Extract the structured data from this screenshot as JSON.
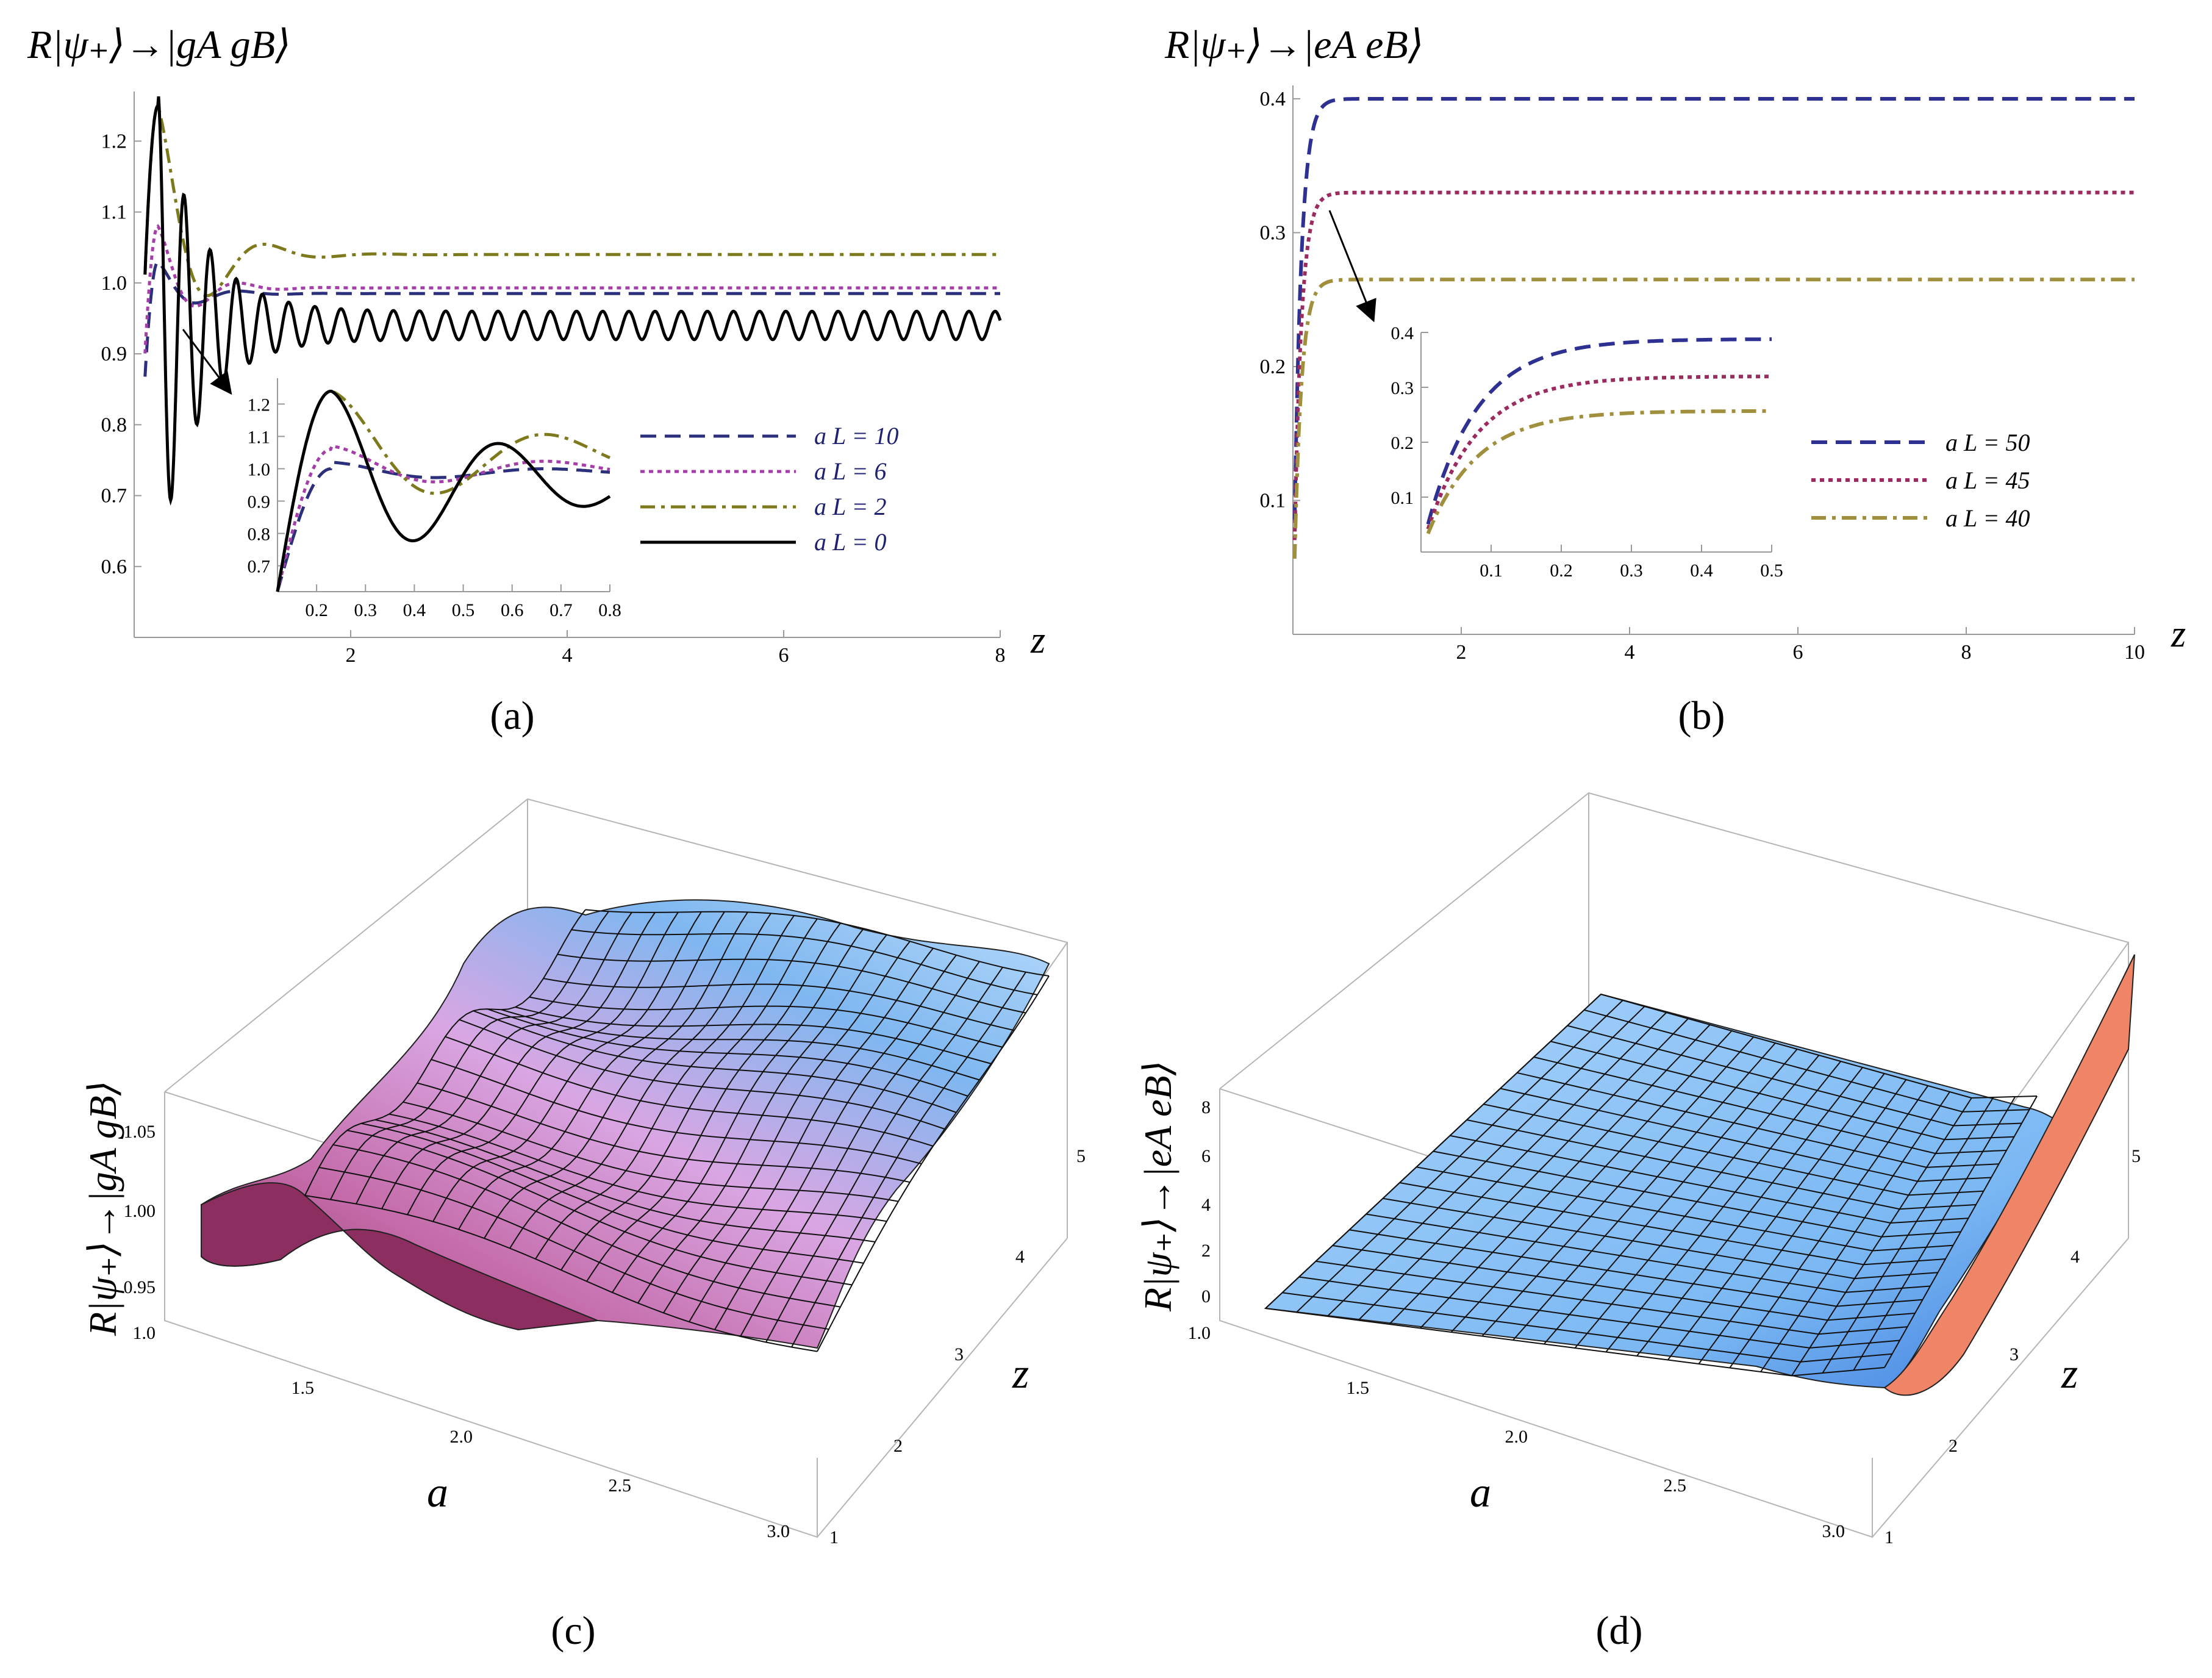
{
  "chart_data": [
    {
      "id": "a",
      "type": "line",
      "caption": "(a)",
      "ylabel": "R|ψ₊⟩→|gA gB⟩",
      "xlabel": "z",
      "xlim": [
        0,
        8
      ],
      "ylim": [
        0.5,
        1.27
      ],
      "xticks": [
        2,
        4,
        6,
        8
      ],
      "yticks": [
        0.6,
        0.7,
        0.8,
        0.9,
        1.0,
        1.1,
        1.2
      ],
      "yticklabels": [
        "0.6",
        "0.7",
        "0.8",
        "0.9",
        "1.0",
        "1.1",
        "1.2"
      ],
      "series": [
        {
          "name": "a L = 10",
          "style": "longdash",
          "color": "#2b2f7c",
          "final": 0.985,
          "peak": 1.03,
          "decay": 1.5,
          "freq": 8
        },
        {
          "name": "a L = 6",
          "style": "dotted",
          "color": "#a53fa8",
          "final": 0.993,
          "peak": 1.08,
          "decay": 1.5,
          "freq": 8
        },
        {
          "name": "a L = 2",
          "style": "dashdot",
          "color": "#7d7a1d",
          "final": 1.04,
          "peak": 1.25,
          "decay": 1.2,
          "freq": 6
        },
        {
          "name": "a L = 0",
          "style": "solid",
          "color": "#000000",
          "final": 0.94,
          "peak": 1.25,
          "decay": 1.2,
          "freq": 26
        }
      ],
      "inset": {
        "xlim": [
          0.12,
          0.8
        ],
        "ylim": [
          0.62,
          1.28
        ],
        "xticks": [
          0.2,
          0.3,
          0.4,
          0.5,
          0.6,
          0.7,
          0.8
        ],
        "yticks": [
          0.7,
          0.8,
          0.9,
          1.0,
          1.1,
          1.2
        ],
        "xticklabels": [
          "0.2",
          "0.3",
          "0.4",
          "0.5",
          "0.6",
          "0.7",
          "0.8"
        ],
        "yticklabels": [
          "0.7",
          "0.8",
          "0.9",
          "1.0",
          "1.1",
          "1.2"
        ]
      }
    },
    {
      "id": "b",
      "type": "line",
      "caption": "(b)",
      "ylabel": "R|ψ₊⟩→|eA eB⟩",
      "xlabel": "z",
      "xlim": [
        0,
        10
      ],
      "ylim": [
        0,
        0.41
      ],
      "xticks": [
        2,
        4,
        6,
        8,
        10
      ],
      "yticks": [
        0.1,
        0.2,
        0.3,
        0.4
      ],
      "series": [
        {
          "name": "a L = 50",
          "style": "longdash",
          "color": "#2e3192",
          "final": 0.4
        },
        {
          "name": "a L = 45",
          "style": "dotted",
          "color": "#9b2a5e",
          "final": 0.33
        },
        {
          "name": "a L = 40",
          "style": "dashdot",
          "color": "#a08f3c",
          "final": 0.265
        }
      ],
      "inset": {
        "xlim": [
          0,
          0.5
        ],
        "ylim": [
          0.0,
          0.4
        ],
        "xticks": [
          0.1,
          0.2,
          0.3,
          0.4,
          0.5
        ],
        "yticks": [
          0.1,
          0.2,
          0.3,
          0.4
        ]
      }
    },
    {
      "id": "c",
      "type": "surface",
      "caption": "(c)",
      "zlabel": "R|ψ₊⟩→|gA gB⟩",
      "xlabel": "a",
      "ylabel": "z",
      "xticks": [
        "1.0",
        "1.5",
        "2.0",
        "2.5",
        "3.0"
      ],
      "yticks": [
        "1",
        "2",
        "3",
        "4",
        "5"
      ],
      "zticks": [
        "0.95",
        "1.00",
        "1.05"
      ]
    },
    {
      "id": "d",
      "type": "surface",
      "caption": "(d)",
      "zlabel": "R|ψ₊⟩→|eA eB⟩",
      "xlabel": "a",
      "ylabel": "z",
      "xticks": [
        "1.0",
        "1.5",
        "2.0",
        "2.5",
        "3.0"
      ],
      "yticks": [
        "1",
        "2",
        "3",
        "4",
        "5"
      ],
      "zticks": [
        "0",
        "2",
        "4",
        "6",
        "8"
      ]
    }
  ]
}
